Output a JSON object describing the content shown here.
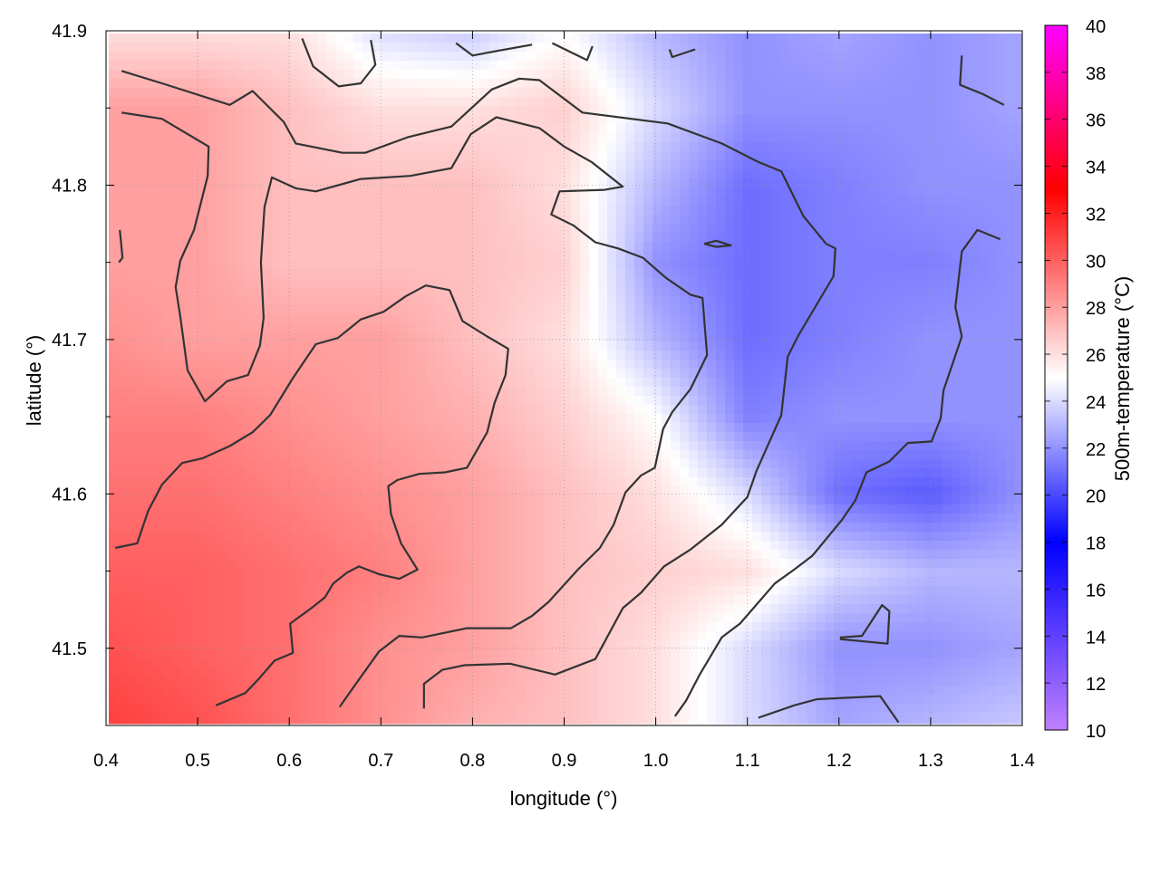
{
  "chart_data": {
    "type": "heatmap",
    "title": "",
    "xlabel": "longitude (°)",
    "ylabel": "latitude (°)",
    "colorbar_label": "500m-temperature (°C)",
    "xlim": [
      0.4,
      1.4
    ],
    "ylim": [
      41.45,
      41.9
    ],
    "xticks": [
      "0.4",
      "0.5",
      "0.6",
      "0.7",
      "0.8",
      "0.9",
      "1.0",
      "1.1",
      "1.2",
      "1.3",
      "1.4"
    ],
    "yticks": [
      "41.5",
      "41.6",
      "41.7",
      "41.8",
      "41.9"
    ],
    "colorbar_range": [
      10,
      40
    ],
    "colorbar_ticks": [
      "10",
      "12",
      "14",
      "16",
      "18",
      "20",
      "22",
      "24",
      "26",
      "28",
      "30",
      "32",
      "34",
      "36",
      "38",
      "40"
    ],
    "colormap": [
      [
        10,
        "#c080ff"
      ],
      [
        18,
        "#0000ff"
      ],
      [
        25,
        "#ffffff"
      ],
      [
        33,
        "#ff0000"
      ],
      [
        40,
        "#ff00ff"
      ]
    ],
    "grid": true,
    "grid_lon": [
      0.4,
      0.5,
      0.6,
      0.7,
      0.8,
      0.9,
      1.0,
      1.1,
      1.2,
      1.3,
      1.4
    ],
    "grid_lat": [
      41.9,
      41.85,
      41.8,
      41.75,
      41.7,
      41.65,
      41.6,
      41.55,
      41.5,
      41.45
    ],
    "temperature": [
      [
        26,
        26,
        26,
        24,
        23.5,
        25,
        23,
        22,
        22.5,
        22,
        22.5
      ],
      [
        28,
        28,
        27,
        26,
        26,
        26.5,
        24,
        22,
        22,
        22,
        22.5
      ],
      [
        28,
        28,
        27,
        27,
        27,
        26,
        23,
        21,
        21.5,
        22,
        22
      ],
      [
        28,
        28,
        27,
        27,
        27,
        26.5,
        22,
        21,
        21.5,
        21.5,
        22
      ],
      [
        28.5,
        28,
        28,
        28,
        27,
        26,
        23,
        21,
        21.5,
        22,
        22
      ],
      [
        29,
        29,
        28.5,
        28,
        27.5,
        26.5,
        25,
        21.5,
        22,
        22,
        22
      ],
      [
        29.5,
        29.5,
        29,
        28.5,
        28,
        27,
        26,
        24,
        21,
        20.5,
        22
      ],
      [
        30,
        30,
        29.5,
        29,
        28,
        27,
        26.5,
        26,
        24,
        23,
        23
      ],
      [
        30.5,
        30,
        29.5,
        28.5,
        28,
        27,
        26,
        24,
        22,
        22,
        22.5
      ],
      [
        31,
        30.5,
        29.5,
        28.5,
        27.5,
        27,
        26,
        24,
        22.5,
        23,
        23.5
      ]
    ],
    "contour_color": "#333333",
    "contours": [
      [
        [
          0.417,
          41.874
        ],
        [
          0.461,
          41.866
        ],
        [
          0.535,
          41.852
        ],
        [
          0.56,
          41.861
        ],
        [
          0.594,
          41.841
        ],
        [
          0.607,
          41.827
        ],
        [
          0.658,
          41.821
        ],
        [
          0.683,
          41.821
        ],
        [
          0.729,
          41.831
        ],
        [
          0.777,
          41.838
        ],
        [
          0.821,
          41.862
        ],
        [
          0.851,
          41.869
        ],
        [
          0.873,
          41.868
        ],
        [
          0.92,
          41.847
        ],
        [
          1.013,
          41.84
        ],
        [
          1.072,
          41.827
        ],
        [
          1.112,
          41.815
        ],
        [
          1.137,
          41.809
        ],
        [
          1.161,
          41.78
        ],
        [
          1.186,
          41.762
        ],
        [
          1.196,
          41.759
        ],
        [
          1.194,
          41.741
        ],
        [
          1.156,
          41.703
        ],
        [
          1.144,
          41.689
        ],
        [
          1.137,
          41.651
        ],
        [
          1.11,
          41.615
        ],
        [
          1.1,
          41.598
        ],
        [
          1.072,
          41.58
        ],
        [
          1.038,
          41.564
        ],
        [
          1.009,
          41.553
        ],
        [
          0.984,
          41.536
        ],
        [
          0.964,
          41.526
        ],
        [
          0.934,
          41.493
        ],
        [
          0.89,
          41.483
        ],
        [
          0.841,
          41.49
        ],
        [
          0.791,
          41.489
        ],
        [
          0.767,
          41.486
        ],
        [
          0.747,
          41.477
        ],
        [
          0.747,
          41.461
        ]
      ],
      [
        [
          0.417,
          41.847
        ],
        [
          0.461,
          41.843
        ],
        [
          0.512,
          41.825
        ],
        [
          0.511,
          41.806
        ],
        [
          0.496,
          41.771
        ],
        [
          0.481,
          41.751
        ],
        [
          0.476,
          41.734
        ],
        [
          0.481,
          41.715
        ],
        [
          0.489,
          41.68
        ],
        [
          0.508,
          41.66
        ],
        [
          0.532,
          41.673
        ],
        [
          0.555,
          41.677
        ],
        [
          0.568,
          41.696
        ],
        [
          0.572,
          41.714
        ],
        [
          0.569,
          41.75
        ],
        [
          0.573,
          41.786
        ],
        [
          0.581,
          41.805
        ],
        [
          0.607,
          41.798
        ],
        [
          0.629,
          41.796
        ],
        [
          0.678,
          41.804
        ],
        [
          0.732,
          41.806
        ],
        [
          0.777,
          41.811
        ],
        [
          0.798,
          41.833
        ],
        [
          0.826,
          41.844
        ],
        [
          0.873,
          41.837
        ],
        [
          0.9,
          41.825
        ],
        [
          0.93,
          41.815
        ],
        [
          0.964,
          41.799
        ],
        [
          0.944,
          41.797
        ],
        [
          0.895,
          41.796
        ],
        [
          0.886,
          41.781
        ],
        [
          0.91,
          41.774
        ],
        [
          0.934,
          41.763
        ],
        [
          0.959,
          41.759
        ],
        [
          0.986,
          41.753
        ],
        [
          1.011,
          41.74
        ],
        [
          1.038,
          41.729
        ],
        [
          1.051,
          41.727
        ],
        [
          1.056,
          41.69
        ],
        [
          1.038,
          41.668
        ],
        [
          1.018,
          41.653
        ],
        [
          1.008,
          41.642
        ],
        [
          0.999,
          41.617
        ],
        [
          0.984,
          41.612
        ],
        [
          0.967,
          41.601
        ],
        [
          0.954,
          41.58
        ],
        [
          0.939,
          41.565
        ],
        [
          0.915,
          41.551
        ],
        [
          0.883,
          41.53
        ],
        [
          0.865,
          41.521
        ],
        [
          0.842,
          41.513
        ],
        [
          0.794,
          41.513
        ],
        [
          0.745,
          41.507
        ],
        [
          0.72,
          41.508
        ],
        [
          0.698,
          41.498
        ],
        [
          0.668,
          41.473
        ],
        [
          0.655,
          41.462
        ]
      ],
      [
        [
          0.41,
          41.565
        ],
        [
          0.434,
          41.568
        ],
        [
          0.446,
          41.589
        ],
        [
          0.461,
          41.606
        ],
        [
          0.483,
          41.62
        ],
        [
          0.505,
          41.623
        ],
        [
          0.535,
          41.631
        ],
        [
          0.56,
          41.64
        ],
        [
          0.579,
          41.651
        ],
        [
          0.604,
          41.675
        ],
        [
          0.629,
          41.697
        ],
        [
          0.653,
          41.701
        ],
        [
          0.678,
          41.713
        ],
        [
          0.703,
          41.718
        ],
        [
          0.727,
          41.728
        ],
        [
          0.749,
          41.735
        ],
        [
          0.775,
          41.732
        ],
        [
          0.789,
          41.712
        ],
        [
          0.816,
          41.702
        ],
        [
          0.839,
          41.694
        ],
        [
          0.836,
          41.677
        ],
        [
          0.824,
          41.659
        ],
        [
          0.816,
          41.64
        ],
        [
          0.794,
          41.617
        ],
        [
          0.77,
          41.614
        ],
        [
          0.742,
          41.613
        ],
        [
          0.718,
          41.609
        ],
        [
          0.708,
          41.605
        ],
        [
          0.711,
          41.587
        ],
        [
          0.722,
          41.568
        ],
        [
          0.74,
          41.551
        ],
        [
          0.72,
          41.545
        ],
        [
          0.698,
          41.548
        ],
        [
          0.676,
          41.553
        ],
        [
          0.663,
          41.549
        ],
        [
          0.648,
          41.542
        ],
        [
          0.639,
          41.533
        ],
        [
          0.624,
          41.526
        ],
        [
          0.601,
          41.516
        ],
        [
          0.604,
          41.497
        ],
        [
          0.584,
          41.492
        ],
        [
          0.568,
          41.481
        ],
        [
          0.552,
          41.471
        ],
        [
          0.52,
          41.463
        ]
      ],
      [
        [
          1.376,
          41.765
        ],
        [
          1.351,
          41.771
        ],
        [
          1.334,
          41.757
        ],
        [
          1.327,
          41.721
        ],
        [
          1.334,
          41.702
        ],
        [
          1.314,
          41.667
        ],
        [
          1.311,
          41.649
        ],
        [
          1.301,
          41.634
        ],
        [
          1.275,
          41.633
        ],
        [
          1.255,
          41.621
        ],
        [
          1.23,
          41.614
        ],
        [
          1.218,
          41.596
        ],
        [
          1.203,
          41.583
        ],
        [
          1.171,
          41.56
        ],
        [
          1.151,
          41.551
        ],
        [
          1.13,
          41.542
        ],
        [
          1.092,
          41.516
        ],
        [
          1.072,
          41.507
        ],
        [
          1.048,
          41.483
        ],
        [
          1.033,
          41.466
        ],
        [
          1.021,
          41.456
        ]
      ],
      [
        [
          1.112,
          41.455
        ],
        [
          1.151,
          41.463
        ],
        [
          1.176,
          41.467
        ],
        [
          1.245,
          41.469
        ],
        [
          1.265,
          41.452
        ]
      ],
      [
        [
          1.201,
          41.507
        ],
        [
          1.225,
          41.508
        ],
        [
          1.247,
          41.528
        ],
        [
          1.255,
          41.524
        ],
        [
          1.253,
          41.503
        ],
        [
          1.201,
          41.506
        ]
      ],
      [
        [
          0.614,
          41.895
        ],
        [
          0.626,
          41.877
        ],
        [
          0.654,
          41.864
        ],
        [
          0.678,
          41.866
        ],
        [
          0.694,
          41.878
        ],
        [
          0.689,
          41.894
        ]
      ],
      [
        [
          0.782,
          41.892
        ],
        [
          0.8,
          41.884
        ],
        [
          0.827,
          41.887
        ],
        [
          0.865,
          41.891
        ]
      ],
      [
        [
          0.887,
          41.892
        ],
        [
          0.925,
          41.881
        ],
        [
          0.931,
          41.89
        ]
      ],
      [
        [
          1.015,
          41.888
        ],
        [
          1.018,
          41.883
        ],
        [
          1.043,
          41.888
        ]
      ],
      [
        [
          1.334,
          41.884
        ],
        [
          1.332,
          41.865
        ],
        [
          1.357,
          41.859
        ],
        [
          1.38,
          41.852
        ]
      ],
      [
        [
          1.053,
          41.762
        ],
        [
          1.066,
          41.764
        ],
        [
          1.082,
          41.761
        ],
        [
          1.066,
          41.76
        ],
        [
          1.053,
          41.762
        ]
      ],
      [
        [
          0.415,
          41.771
        ],
        [
          0.418,
          41.753
        ],
        [
          0.414,
          41.75
        ]
      ]
    ]
  }
}
